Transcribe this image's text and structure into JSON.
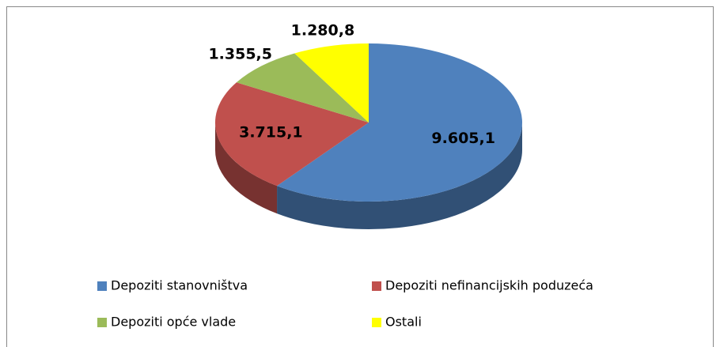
{
  "chart_data": {
    "type": "pie",
    "categories": [
      "Depoziti stanovništva",
      "Depoziti nefinancijskih poduzeća",
      "Depoziti opće vlade",
      "Ostali"
    ],
    "values": [
      9605.1,
      3715.1,
      1355.5,
      1280.8
    ],
    "value_labels": [
      "9.605,1",
      "3.715,1",
      "1.355,5",
      "1.280,8"
    ],
    "colors": [
      "#4f81bd",
      "#c0504d",
      "#9bbb59",
      "#ffff00"
    ],
    "legend": "bottom"
  }
}
